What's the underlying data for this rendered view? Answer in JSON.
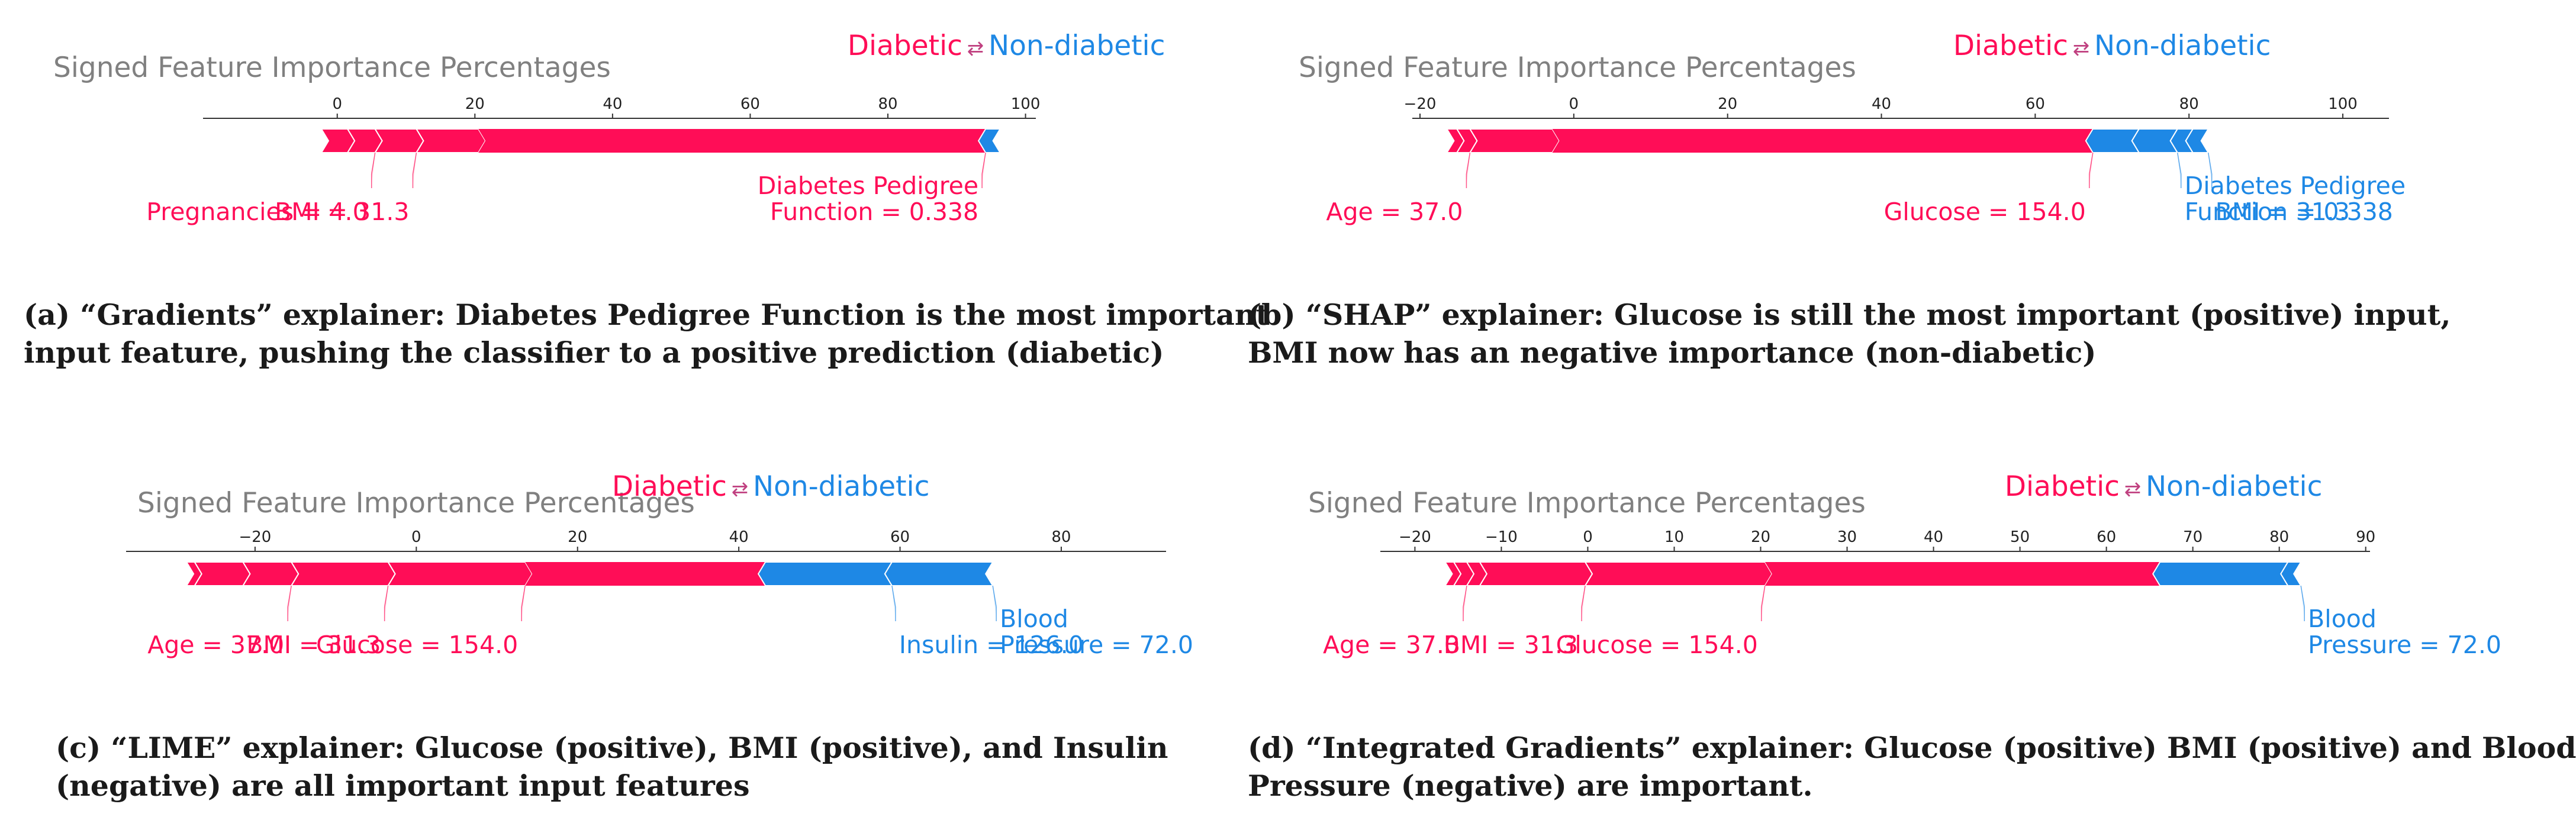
{
  "colors": {
    "positive": "#ff0d57",
    "negative": "#1e88e5",
    "title": "#808080",
    "caption": "#1a1a1a"
  },
  "legend_arrow": "⇄",
  "chart_data": [
    {
      "type": "force-bar",
      "title": "Signed Feature Importance Percentages",
      "legend": {
        "positive": "Diabetic",
        "negative": "Non-diabetic"
      },
      "xlim": [
        -19.5,
        101.5
      ],
      "ticks": [
        0,
        20,
        40,
        60,
        80,
        100
      ],
      "positive_segments": [
        [
          -2.3,
          1.5
        ],
        [
          1.5,
          5.5
        ],
        [
          5.5,
          11.5
        ],
        [
          11.5,
          20.5
        ],
        [
          20.5,
          94.2
        ]
      ],
      "negative_segments": [
        [
          94.2,
          96.3
        ]
      ],
      "labels": [
        {
          "side": "positive",
          "lines": [
            "Pregnancies = 4.0"
          ],
          "value": 5.5
        },
        {
          "side": "positive",
          "lines": [
            "BMI = 31.3"
          ],
          "value": 11.5
        },
        {
          "side": "positive",
          "lines": [
            "Diabetes Pedigree",
            "Function = 0.338"
          ],
          "value": 94.2
        }
      ],
      "caption": [
        "(a) “Gradients” explainer: Diabetes Pedigree Function is the most important",
        "input feature, pushing the classifier to a positive prediction (diabetic)"
      ]
    },
    {
      "type": "force-bar",
      "title": "Signed Feature Importance Percentages",
      "legend": {
        "positive": "Diabetic",
        "negative": "Non-diabetic"
      },
      "xlim": [
        -21,
        106
      ],
      "ticks": [
        -20,
        0,
        20,
        40,
        60,
        80,
        100
      ],
      "positive_segments": [
        [
          -16.5,
          -15.2
        ],
        [
          -15.2,
          -13.5
        ],
        [
          -13.5,
          -2.8
        ],
        [
          -2.8,
          67.5
        ]
      ],
      "negative_segments": [
        [
          67.5,
          73.5
        ],
        [
          73.5,
          78.5
        ],
        [
          78.5,
          80.5
        ],
        [
          80.5,
          82.5
        ]
      ],
      "labels": [
        {
          "side": "positive",
          "lines": [
            "Age = 37.0"
          ],
          "value": -13.5
        },
        {
          "side": "positive",
          "lines": [
            "Glucose = 154.0"
          ],
          "value": 67.5
        },
        {
          "side": "negative",
          "lines": [
            "Diabetes Pedigree",
            "Function = 0.338"
          ],
          "value": 78.5
        },
        {
          "side": "negative",
          "lines": [
            "BMI = 31.3"
          ],
          "value": 82.5
        }
      ],
      "caption": [
        "(b) “SHAP” explainer: Glucose is still the most important (positive) input,",
        "BMI now has an negative importance (non-diabetic)"
      ]
    },
    {
      "type": "force-bar",
      "title": "Signed Feature Importance Percentages",
      "legend": {
        "positive": "Diabetic",
        "negative": "Non-diabetic"
      },
      "xlim": [
        -36,
        93
      ],
      "ticks": [
        -20,
        0,
        20,
        40,
        60,
        80
      ],
      "positive_segments": [
        [
          -28.5,
          -27.5
        ],
        [
          -27.5,
          -21.5
        ],
        [
          -21.5,
          -15.5
        ],
        [
          -15.5,
          -3.5
        ],
        [
          -3.5,
          13.5
        ],
        [
          13.5,
          43.3
        ]
      ],
      "negative_segments": [
        [
          43.3,
          59
        ],
        [
          59,
          71.5
        ]
      ],
      "labels": [
        {
          "side": "positive",
          "lines": [
            "Age = 37.0"
          ],
          "value": -15.5
        },
        {
          "side": "positive",
          "lines": [
            "BMI = 31.3"
          ],
          "value": -3.5
        },
        {
          "side": "positive",
          "lines": [
            "Glucose = 154.0"
          ],
          "value": 13.5
        },
        {
          "side": "negative",
          "lines": [
            "Insulin = 126.0"
          ],
          "value": 59
        },
        {
          "side": "negative",
          "lines": [
            "Blood",
            "Pressure = 72.0"
          ],
          "value": 71.5
        }
      ],
      "caption": [
        "(c) “LIME” explainer: Glucose (positive), BMI (positive), and Insulin",
        "(negative) are all important input features"
      ]
    },
    {
      "type": "force-bar",
      "title": "Signed Feature Importance Percentages",
      "legend": {
        "positive": "Diabetic",
        "negative": "Non-diabetic"
      },
      "xlim": [
        -24,
        90.5
      ],
      "ticks": [
        -20,
        -10,
        0,
        10,
        20,
        30,
        40,
        50,
        60,
        70,
        80,
        90
      ],
      "positive_segments": [
        [
          -16.5,
          -15.5
        ],
        [
          -15.5,
          -14
        ],
        [
          -14,
          -12.5
        ],
        [
          -12.5,
          -0.3
        ],
        [
          -0.3,
          20.5
        ],
        [
          20.5,
          66.2
        ]
      ],
      "negative_segments": [
        [
          66.2,
          81
        ],
        [
          81,
          82.5
        ]
      ],
      "labels": [
        {
          "side": "positive",
          "lines": [
            "Age = 37.0"
          ],
          "value": -14
        },
        {
          "side": "positive",
          "lines": [
            "BMI = 31.3"
          ],
          "value": -0.3
        },
        {
          "side": "positive",
          "lines": [
            "Glucose = 154.0"
          ],
          "value": 20.5
        },
        {
          "side": "negative",
          "lines": [
            "Blood",
            "Pressure = 72.0"
          ],
          "value": 82.5
        }
      ],
      "caption": [
        "(d) “Integrated Gradients” explainer: Glucose (positive) BMI (positive) and Blood",
        "Pressure (negative) are important."
      ]
    }
  ]
}
